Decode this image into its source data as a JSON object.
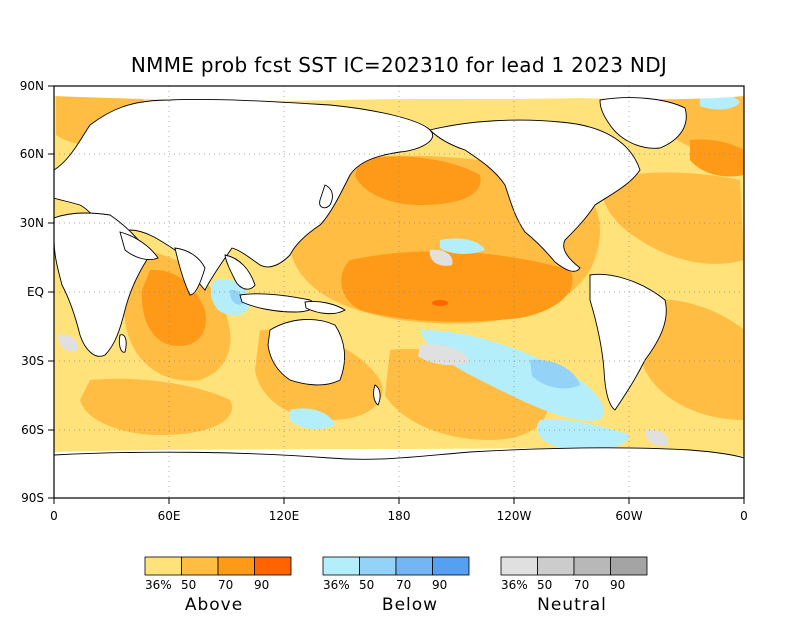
{
  "title": "NMME prob fcst SST IC=202310 for lead 1 2023 NDJ",
  "y_axis_ticks": [
    "90N",
    "60N",
    "30N",
    "EQ",
    "30S",
    "60S",
    "90S"
  ],
  "x_axis_ticks": [
    "0",
    "60E",
    "120E",
    "180",
    "120W",
    "60W",
    "0"
  ],
  "legends": [
    {
      "name": "Above",
      "labels": [
        "36%",
        "50",
        "70",
        "90"
      ],
      "colors": [
        "#ffe27a",
        "#ffbd43",
        "#ff9a18",
        "#ff6400"
      ]
    },
    {
      "name": "Below",
      "labels": [
        "36%",
        "50",
        "70",
        "90"
      ],
      "colors": [
        "#b4eefb",
        "#94d2f7",
        "#74b6f4",
        "#55a0f0"
      ]
    },
    {
      "name": "Neutral",
      "labels": [
        "36%",
        "50",
        "70",
        "90"
      ],
      "colors": [
        "#e0e0e0",
        "#cccccc",
        "#b8b8b8",
        "#a4a4a4"
      ]
    }
  ]
}
